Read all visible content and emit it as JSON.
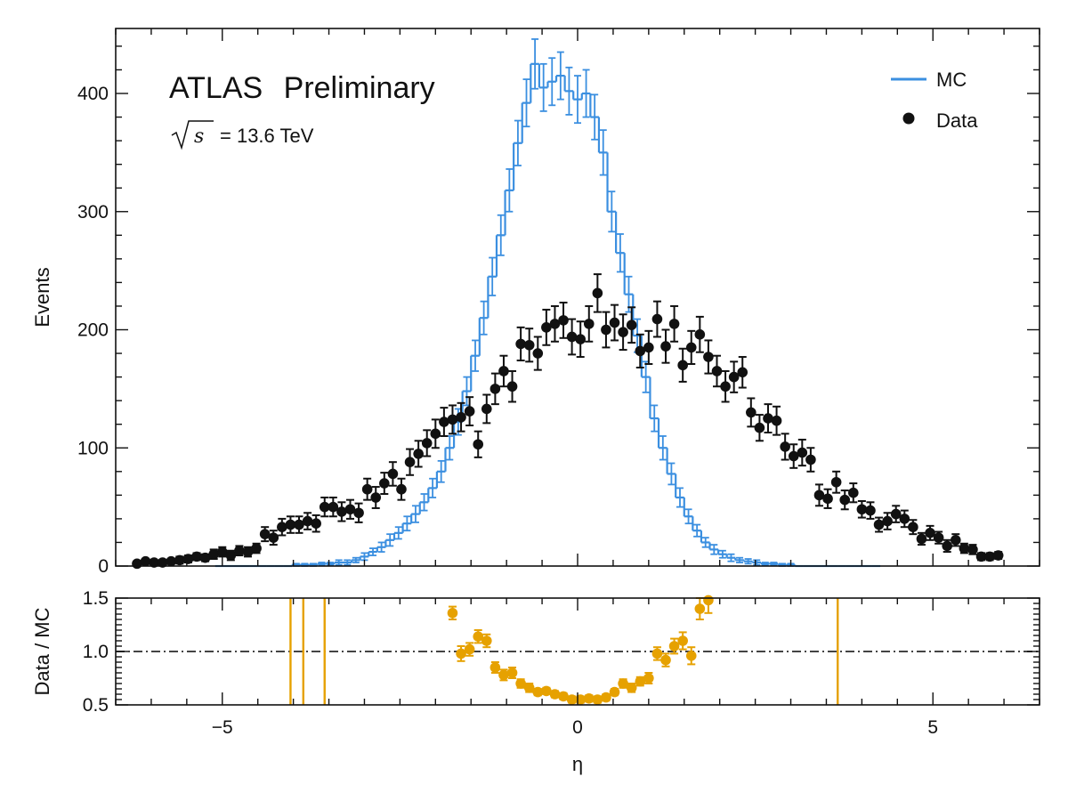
{
  "colors": {
    "mc": "#3b8fe0",
    "data": "#111111",
    "ratio": "#e6a100",
    "reference_line": "#444444"
  },
  "annotation": {
    "experiment": "ATLAS",
    "status": "Preliminary",
    "sqrt_s_symbol": "s",
    "energy": "= 13.6 TeV"
  },
  "legend": {
    "mc_label": "MC",
    "data_label": "Data",
    "placement": "top-right"
  },
  "chart_data": [
    {
      "type": "histogram-with-points",
      "panel": "main",
      "xlabel": "η",
      "ylabel": "Events",
      "xlim": [
        -6.5,
        6.5
      ],
      "ylim": [
        0,
        455
      ],
      "yticks": [
        0,
        100,
        200,
        300,
        400
      ],
      "series": [
        {
          "name": "MC",
          "style": "step-with-errors",
          "bin_width": 0.12,
          "x": [
            -5.04,
            -4.92,
            -4.8,
            -4.68,
            -4.56,
            -4.44,
            -4.32,
            -4.2,
            -4.08,
            -3.96,
            -3.84,
            -3.72,
            -3.6,
            -3.48,
            -3.36,
            -3.24,
            -3.12,
            -3.0,
            -2.88,
            -2.76,
            -2.64,
            -2.52,
            -2.4,
            -2.28,
            -2.16,
            -2.04,
            -1.92,
            -1.8,
            -1.68,
            -1.56,
            -1.44,
            -1.32,
            -1.2,
            -1.08,
            -0.96,
            -0.84,
            -0.72,
            -0.6,
            -0.48,
            -0.36,
            -0.24,
            -0.12,
            0.0,
            0.12,
            0.24,
            0.36,
            0.48,
            0.6,
            0.72,
            0.84,
            0.96,
            1.08,
            1.2,
            1.32,
            1.44,
            1.56,
            1.68,
            1.8,
            1.92,
            2.04,
            2.16,
            2.28,
            2.4,
            2.52,
            2.64,
            2.76,
            2.88,
            3.0,
            3.12,
            3.24,
            3.36,
            3.48,
            3.6,
            3.72,
            3.84,
            3.96,
            4.08,
            4.2
          ],
          "values": [
            0,
            0,
            0,
            0,
            0,
            0,
            0,
            0,
            0,
            1,
            1,
            1,
            2,
            2,
            3,
            3,
            5,
            8,
            12,
            16,
            22,
            28,
            36,
            44,
            54,
            66,
            80,
            100,
            122,
            148,
            178,
            210,
            245,
            280,
            318,
            358,
            392,
            425,
            405,
            410,
            415,
            402,
            395,
            400,
            380,
            350,
            300,
            265,
            230,
            195,
            160,
            125,
            100,
            78,
            58,
            42,
            30,
            20,
            14,
            10,
            7,
            5,
            4,
            3,
            2,
            2,
            1,
            1,
            0,
            0,
            0,
            0,
            0,
            0,
            0,
            0,
            0,
            0
          ],
          "errors": [
            0,
            0,
            0,
            0,
            0,
            0,
            0,
            0,
            0,
            1,
            1,
            1,
            1,
            1,
            2,
            2,
            2,
            3,
            3,
            4,
            5,
            5,
            6,
            7,
            7,
            8,
            9,
            10,
            11,
            12,
            13,
            14,
            16,
            17,
            18,
            19,
            20,
            21,
            20,
            20,
            20,
            20,
            20,
            20,
            19,
            19,
            17,
            16,
            15,
            14,
            13,
            11,
            10,
            9,
            8,
            6,
            5,
            4,
            4,
            3,
            3,
            2,
            2,
            2,
            1,
            1,
            1,
            1,
            0,
            0,
            0,
            0,
            0,
            0,
            0,
            0,
            0,
            0
          ]
        },
        {
          "name": "Data",
          "style": "points-with-errors",
          "x": [
            -6.2,
            -6.08,
            -5.96,
            -5.84,
            -5.72,
            -5.6,
            -5.48,
            -5.36,
            -5.24,
            -5.12,
            -5.0,
            -4.88,
            -4.76,
            -4.64,
            -4.52,
            -4.4,
            -4.28,
            -4.16,
            -4.04,
            -3.92,
            -3.8,
            -3.68,
            -3.56,
            -3.44,
            -3.32,
            -3.2,
            -3.08,
            -2.96,
            -2.84,
            -2.72,
            -2.6,
            -2.48,
            -2.36,
            -2.24,
            -2.12,
            -2.0,
            -1.88,
            -1.76,
            -1.64,
            -1.52,
            -1.4,
            -1.28,
            -1.16,
            -1.04,
            -0.92,
            -0.8,
            -0.68,
            -0.56,
            -0.44,
            -0.32,
            -0.2,
            -0.08,
            0.04,
            0.16,
            0.28,
            0.4,
            0.52,
            0.64,
            0.76,
            0.88,
            1.0,
            1.12,
            1.24,
            1.36,
            1.48,
            1.6,
            1.72,
            1.84,
            1.96,
            2.08,
            2.2,
            2.32,
            2.44,
            2.56,
            2.68,
            2.8,
            2.92,
            3.04,
            3.16,
            3.28,
            3.4,
            3.52,
            3.64,
            3.76,
            3.88,
            4.0,
            4.12,
            4.24,
            4.36,
            4.48,
            4.6,
            4.72,
            4.84,
            4.96,
            5.08,
            5.2,
            5.32,
            5.44,
            5.56,
            5.68,
            5.8,
            5.92
          ],
          "values": [
            2,
            4,
            3,
            3,
            4,
            5,
            6,
            8,
            7,
            10,
            12,
            9,
            13,
            12,
            15,
            27,
            24,
            33,
            35,
            35,
            38,
            36,
            50,
            50,
            46,
            48,
            45,
            65,
            58,
            70,
            78,
            65,
            88,
            95,
            104,
            112,
            122,
            124,
            126,
            131,
            103,
            133,
            150,
            165,
            152,
            188,
            187,
            180,
            202,
            205,
            208,
            194,
            192,
            205,
            231,
            200,
            206,
            198,
            204,
            182,
            185,
            209,
            186,
            205,
            170,
            185,
            196,
            177,
            165,
            152,
            160,
            164,
            130,
            117,
            125,
            123,
            101,
            93,
            96,
            90,
            60,
            57,
            71,
            56,
            62,
            48,
            47,
            35,
            38,
            44,
            40,
            33,
            23,
            28,
            24,
            17,
            22,
            15,
            14,
            8,
            8,
            9
          ],
          "errors": [
            2,
            2,
            2,
            2,
            2,
            3,
            3,
            3,
            3,
            4,
            4,
            4,
            4,
            4,
            4,
            6,
            6,
            7,
            7,
            7,
            7,
            7,
            8,
            8,
            8,
            8,
            8,
            9,
            9,
            9,
            10,
            9,
            11,
            11,
            11,
            12,
            12,
            12,
            12,
            12,
            11,
            12,
            13,
            13,
            13,
            14,
            14,
            14,
            15,
            15,
            15,
            15,
            15,
            15,
            16,
            15,
            15,
            15,
            15,
            14,
            14,
            15,
            14,
            15,
            14,
            14,
            15,
            14,
            13,
            13,
            13,
            13,
            12,
            11,
            12,
            12,
            11,
            10,
            11,
            10,
            9,
            8,
            9,
            8,
            8,
            7,
            7,
            6,
            7,
            7,
            7,
            6,
            5,
            6,
            5,
            5,
            5,
            4,
            4,
            3,
            3,
            3
          ]
        }
      ]
    },
    {
      "type": "scatter",
      "panel": "ratio",
      "xlabel": "η",
      "ylabel": "Data / MC",
      "xlim": [
        -6.5,
        6.5
      ],
      "ylim": [
        0.5,
        1.5
      ],
      "yticks": [
        0.5,
        1.0,
        1.5
      ],
      "ytick_labels": [
        "0.5",
        "1.0",
        "1.5"
      ],
      "xticks": [
        -5,
        0,
        5
      ],
      "xtick_labels": [
        "−5",
        "0",
        "5"
      ],
      "reference_line": 1.0,
      "vertical_error_lines_x": [
        -4.04,
        -3.86,
        -3.56,
        3.66
      ],
      "series": [
        {
          "name": "Data / MC",
          "x": [
            -1.76,
            -1.64,
            -1.52,
            -1.4,
            -1.28,
            -1.16,
            -1.04,
            -0.92,
            -0.8,
            -0.68,
            -0.56,
            -0.44,
            -0.32,
            -0.2,
            -0.08,
            0.04,
            0.16,
            0.28,
            0.4,
            0.52,
            0.64,
            0.76,
            0.88,
            1.0,
            1.12,
            1.24,
            1.36,
            1.48,
            1.6,
            1.72,
            1.84
          ],
          "values": [
            1.36,
            0.98,
            1.02,
            1.14,
            1.1,
            0.85,
            0.78,
            0.8,
            0.7,
            0.66,
            0.62,
            0.63,
            0.6,
            0.58,
            0.55,
            0.55,
            0.56,
            0.55,
            0.57,
            0.62,
            0.7,
            0.66,
            0.72,
            0.75,
            0.98,
            0.92,
            1.05,
            1.1,
            0.96,
            1.4,
            1.48
          ],
          "errors": [
            0.06,
            0.07,
            0.06,
            0.06,
            0.06,
            0.05,
            0.05,
            0.05,
            0.04,
            0.04,
            0.03,
            0.03,
            0.03,
            0.03,
            0.03,
            0.03,
            0.03,
            0.03,
            0.03,
            0.03,
            0.04,
            0.04,
            0.04,
            0.05,
            0.06,
            0.06,
            0.07,
            0.08,
            0.08,
            0.1,
            0.12
          ]
        }
      ]
    }
  ]
}
